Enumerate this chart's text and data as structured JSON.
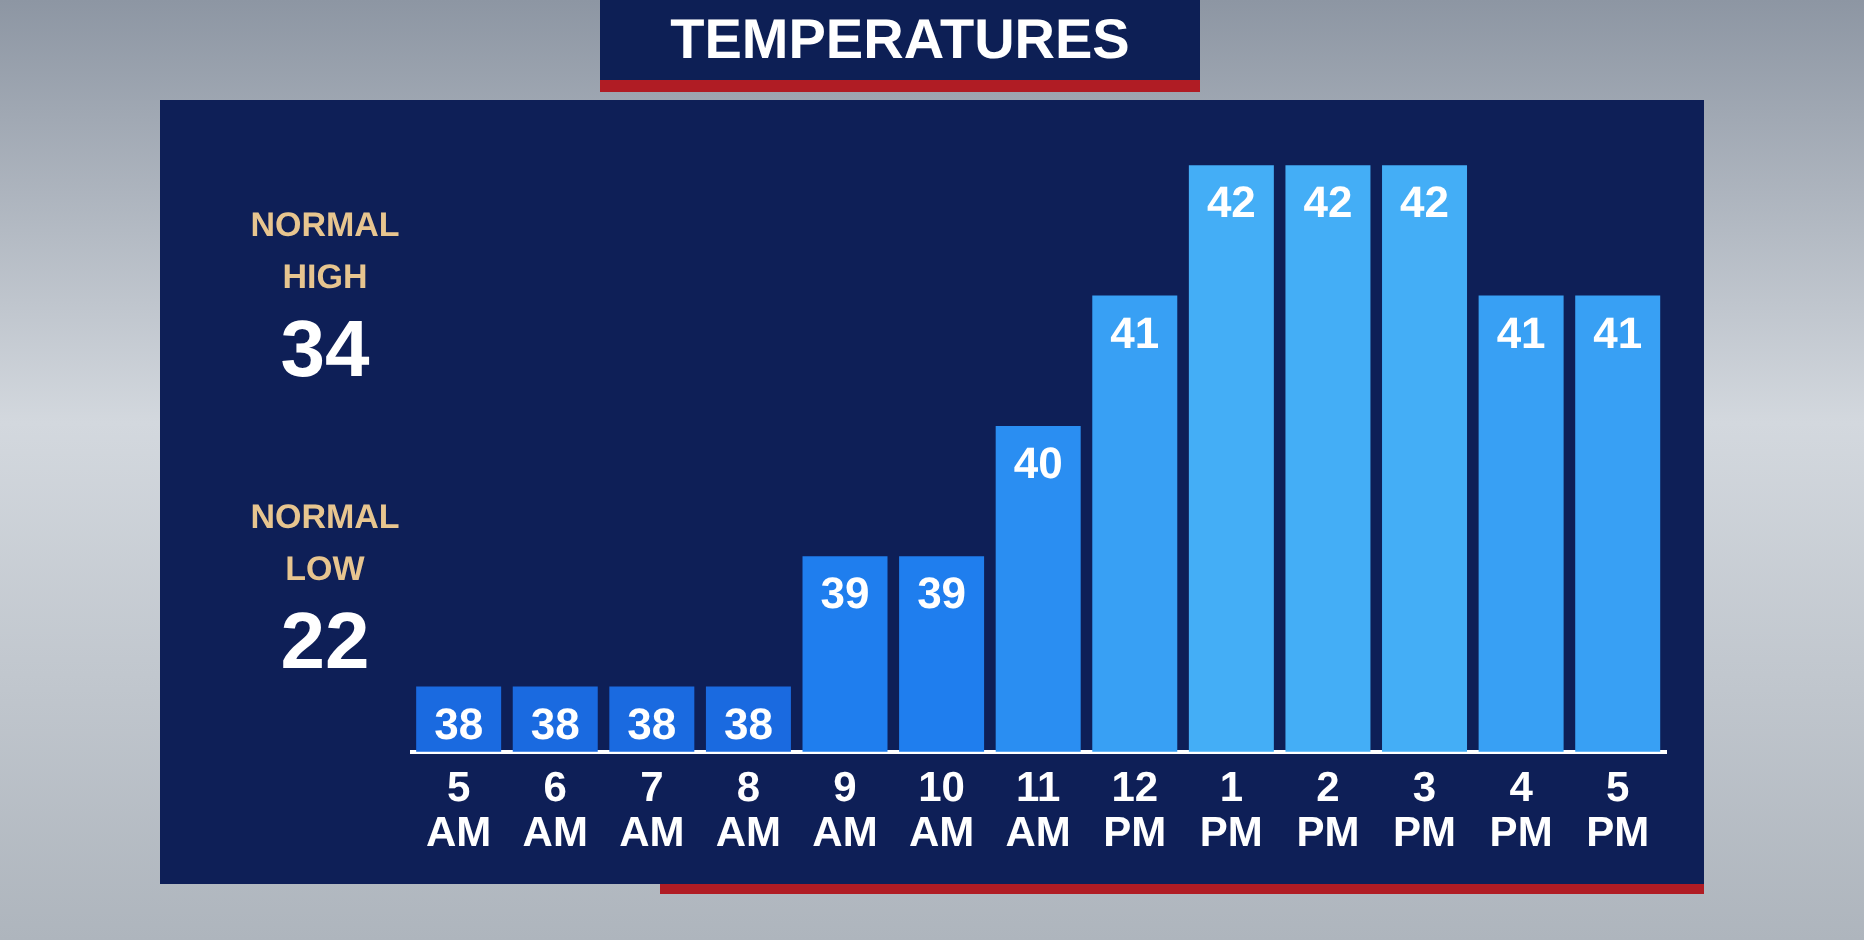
{
  "chart_data": {
    "type": "bar",
    "title": "TEMPERATURES",
    "categories": [
      "5 AM",
      "6 AM",
      "7 AM",
      "8 AM",
      "9 AM",
      "10 AM",
      "11 AM",
      "12 PM",
      "1 PM",
      "2 PM",
      "3 PM",
      "4 PM",
      "5 PM"
    ],
    "values": [
      38,
      38,
      38,
      38,
      39,
      39,
      40,
      41,
      42,
      42,
      42,
      41,
      41
    ],
    "colors": [
      "#1a6ae0",
      "#1a6ae0",
      "#1a6ae0",
      "#1a6ae0",
      "#1f7eee",
      "#1f7eee",
      "#2a8ef2",
      "#38a0f4",
      "#44aef6",
      "#44aef6",
      "#44aef6",
      "#38a0f4",
      "#38a0f4"
    ],
    "data_labels": true,
    "grid": false,
    "legend": false,
    "annotations": [
      "NORMAL HIGH",
      "34",
      "NORMAL LOW",
      "22"
    ]
  }
}
